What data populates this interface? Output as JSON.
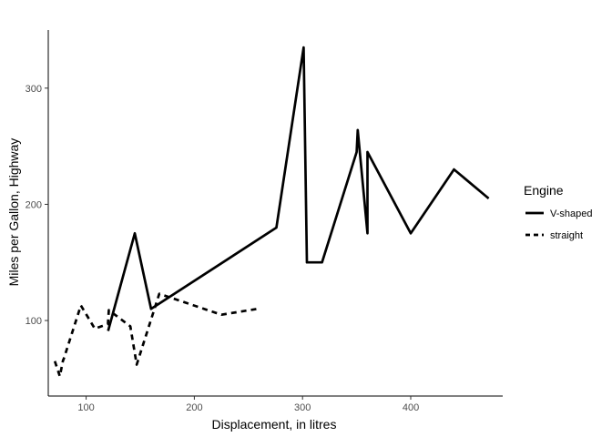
{
  "chart_data": {
    "type": "line",
    "title": "",
    "xlabel": "Displacement, in litres",
    "ylabel": "Miles per Gallon, Highway",
    "xlim": [
      65,
      485
    ],
    "ylim": [
      35,
      350
    ],
    "x_ticks": [
      100,
      200,
      300,
      400
    ],
    "y_ticks": [
      100,
      200,
      300
    ],
    "grid": false,
    "legend": {
      "title": "Engine",
      "position": "right"
    },
    "series": [
      {
        "name": "V-shaped",
        "line_style": "solid",
        "color": "#000000",
        "x": [
          120.3,
          145,
          160,
          275.8,
          301,
          304,
          318,
          350,
          351,
          360,
          360,
          400,
          440,
          472
        ],
        "y": [
          91,
          175,
          110,
          180,
          335,
          150,
          150,
          245,
          264,
          175,
          245,
          175,
          230,
          205
        ]
      },
      {
        "name": "straight",
        "line_style": "dashed",
        "color": "#000000",
        "x": [
          71.1,
          75.7,
          78.7,
          79,
          95.1,
          108,
          120.1,
          121,
          140.8,
          146.7,
          167.6,
          225,
          258
        ],
        "y": [
          65,
          52,
          66,
          66,
          113,
          93,
          97,
          109,
          95,
          62,
          123,
          105,
          110
        ]
      }
    ]
  }
}
